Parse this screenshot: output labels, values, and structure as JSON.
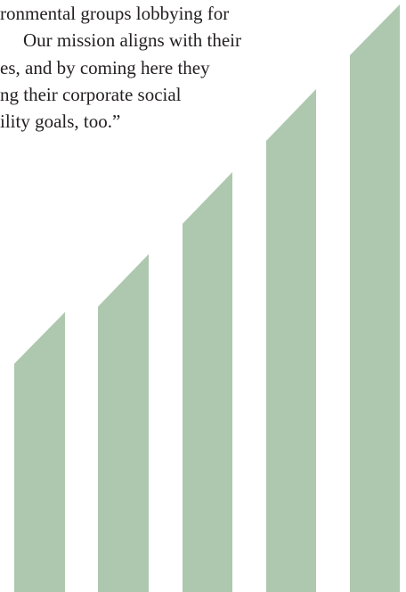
{
  "quote": {
    "lines": [
      "ronmental groups lobbying for",
      "Our mission aligns with their",
      "es, and by coming here they",
      "ng their corporate social",
      "ility goals, too.”"
    ]
  },
  "decoration": {
    "bar_color": "#adc8ae",
    "bar_count": 5
  }
}
